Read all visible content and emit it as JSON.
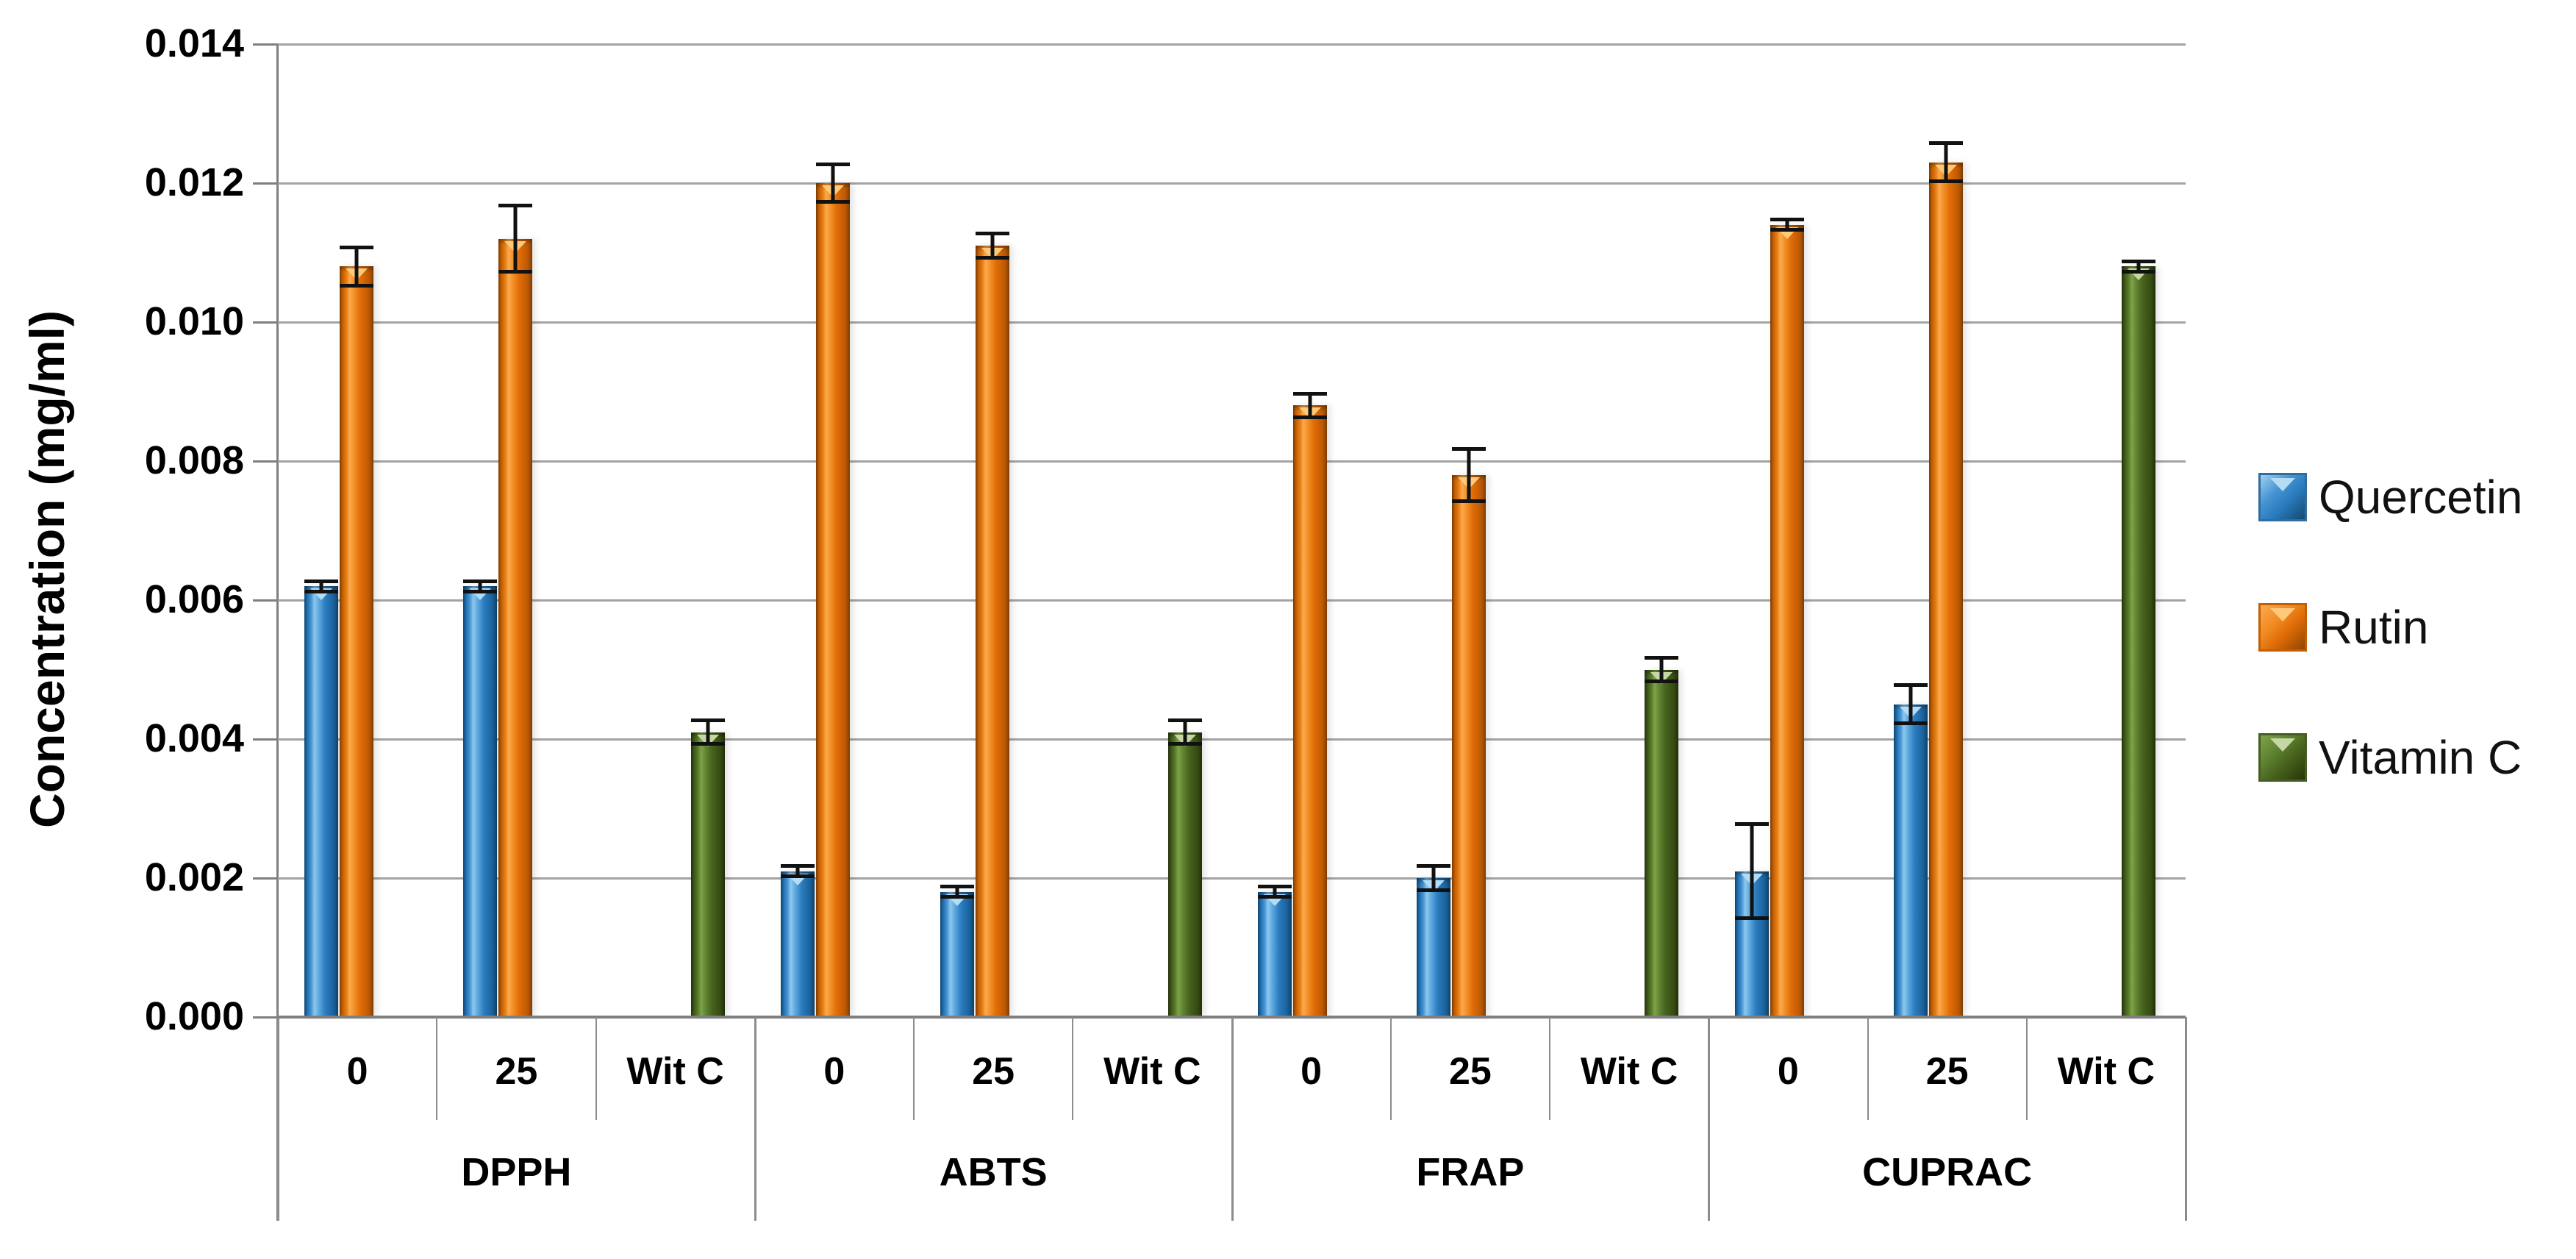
{
  "axis": {
    "y_title": "Concentration (mg/ml)",
    "y_tick_labels": [
      "0.000",
      "0.002",
      "0.004",
      "0.006",
      "0.008",
      "0.010",
      "0.012",
      "0.014"
    ]
  },
  "legend": [
    {
      "label": "Quercetin",
      "series": "quercetin",
      "color": "#2E7FC2"
    },
    {
      "label": "Rutin",
      "series": "rutin",
      "color": "#E8720C"
    },
    {
      "label": "Vitamin C",
      "series": "vitaminc",
      "color": "#4E6B28"
    }
  ],
  "chart_data": {
    "type": "bar",
    "title": "",
    "xlabel": "",
    "ylabel": "Concentration (mg/ml)",
    "ylim": [
      0,
      0.014
    ],
    "ytick_step": 0.002,
    "grid": "horizontal",
    "legend_position": "right",
    "error_bars": true,
    "series_names": [
      "Quercetin",
      "Rutin",
      "Vitamin C"
    ],
    "subcategories": [
      "0",
      "25",
      "Wit C"
    ],
    "groups": [
      {
        "label": "DPPH",
        "cells": [
          {
            "label": "0",
            "bars": [
              {
                "series": "quercetin",
                "name": "Quercetin",
                "value": 0.0062,
                "error": 0.0001
              },
              {
                "series": "rutin",
                "name": "Rutin",
                "value": 0.0108,
                "error": 0.0003
              }
            ]
          },
          {
            "label": "25",
            "bars": [
              {
                "series": "quercetin",
                "name": "Quercetin",
                "value": 0.0062,
                "error": 0.0001
              },
              {
                "series": "rutin",
                "name": "Rutin",
                "value": 0.0112,
                "error": 0.0005
              }
            ]
          },
          {
            "label": "Wit C",
            "bars": [
              {
                "series": "vitaminc",
                "name": "Vitamin C",
                "value": 0.0041,
                "error": 0.0002
              }
            ]
          }
        ]
      },
      {
        "label": "ABTS",
        "cells": [
          {
            "label": "0",
            "bars": [
              {
                "series": "quercetin",
                "name": "Quercetin",
                "value": 0.0021,
                "error": 0.0001
              },
              {
                "series": "rutin",
                "name": "Rutin",
                "value": 0.012,
                "error": 0.0003
              }
            ]
          },
          {
            "label": "25",
            "bars": [
              {
                "series": "quercetin",
                "name": "Quercetin",
                "value": 0.0018,
                "error": 0.0001
              },
              {
                "series": "rutin",
                "name": "Rutin",
                "value": 0.0111,
                "error": 0.0002
              }
            ]
          },
          {
            "label": "Wit C",
            "bars": [
              {
                "series": "vitaminc",
                "name": "Vitamin C",
                "value": 0.0041,
                "error": 0.0002
              }
            ]
          }
        ]
      },
      {
        "label": "FRAP",
        "cells": [
          {
            "label": "0",
            "bars": [
              {
                "series": "quercetin",
                "name": "Quercetin",
                "value": 0.0018,
                "error": 0.0001
              },
              {
                "series": "rutin",
                "name": "Rutin",
                "value": 0.0088,
                "error": 0.0002
              }
            ]
          },
          {
            "label": "25",
            "bars": [
              {
                "series": "quercetin",
                "name": "Quercetin",
                "value": 0.002,
                "error": 0.0002
              },
              {
                "series": "rutin",
                "name": "Rutin",
                "value": 0.0078,
                "error": 0.0004
              }
            ]
          },
          {
            "label": "Wit C",
            "bars": [
              {
                "series": "vitaminc",
                "name": "Vitamin C",
                "value": 0.005,
                "error": 0.0002
              }
            ]
          }
        ]
      },
      {
        "label": "CUPRAC",
        "cells": [
          {
            "label": "0",
            "bars": [
              {
                "series": "quercetin",
                "name": "Quercetin",
                "value": 0.0021,
                "error": 0.0007
              },
              {
                "series": "rutin",
                "name": "Rutin",
                "value": 0.0114,
                "error": 0.0001
              }
            ]
          },
          {
            "label": "25",
            "bars": [
              {
                "series": "quercetin",
                "name": "Quercetin",
                "value": 0.0045,
                "error": 0.0003
              },
              {
                "series": "rutin",
                "name": "Rutin",
                "value": 0.0123,
                "error": 0.0003
              }
            ]
          },
          {
            "label": "Wit C",
            "bars": [
              {
                "series": "vitaminc",
                "name": "Vitamin C",
                "value": 0.0108,
                "error": 0.0001
              }
            ]
          }
        ]
      }
    ]
  }
}
